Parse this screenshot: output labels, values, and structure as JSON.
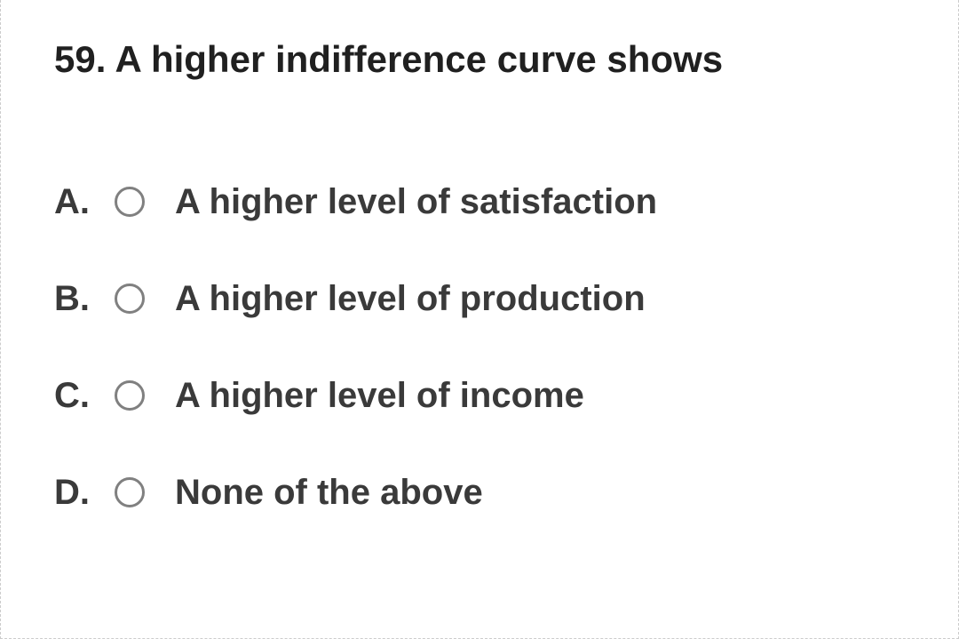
{
  "question": {
    "number": "59.",
    "text": "A higher indifference curve shows",
    "title_fontsize": 42,
    "title_color": "#202020"
  },
  "options": [
    {
      "letter": "A.",
      "text": "A higher level of satisfaction",
      "selected": false
    },
    {
      "letter": "B.",
      "text": "A higher level of production",
      "selected": false
    },
    {
      "letter": "C.",
      "text": "A higher level of income",
      "selected": false
    },
    {
      "letter": "D.",
      "text": "None of the above",
      "selected": false
    }
  ],
  "styling": {
    "option_fontsize": 40,
    "option_color": "#3a3a3a",
    "radio_border_color": "#808080",
    "radio_size": 34,
    "background_color": "#ffffff",
    "border_color": "#cccccc",
    "font_weight": 700
  }
}
